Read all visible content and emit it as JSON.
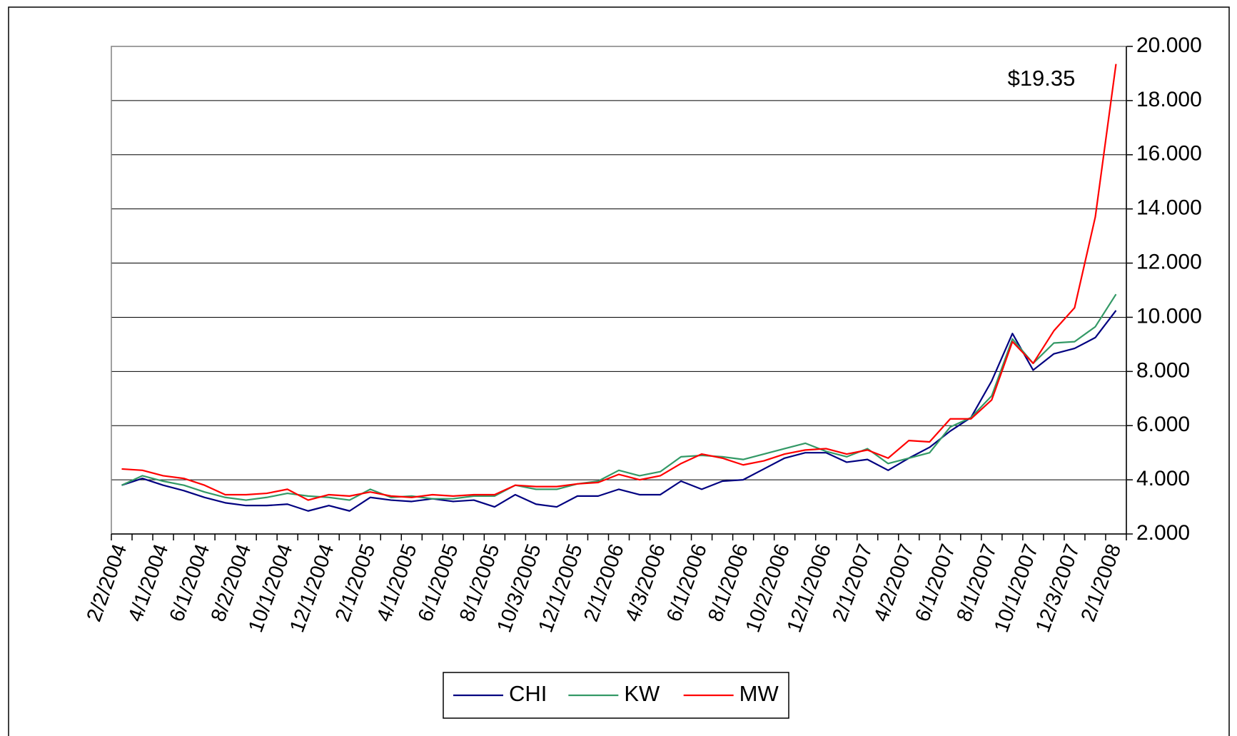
{
  "chart_data": {
    "type": "line",
    "categories": [
      "2/2/2004",
      null,
      "4/1/2004",
      null,
      "6/1/2004",
      null,
      "8/2/2004",
      null,
      "10/1/2004",
      null,
      "12/1/2004",
      null,
      "2/1/2005",
      null,
      "4/1/2005",
      null,
      "6/1/2005",
      null,
      "8/1/2005",
      null,
      "10/3/2005",
      null,
      "12/1/2005",
      null,
      "2/1/2006",
      null,
      "4/3/2006",
      null,
      "6/1/2006",
      null,
      "8/1/2006",
      null,
      "10/2/2006",
      null,
      "12/1/2006",
      null,
      "2/1/2007",
      null,
      "4/2/2007",
      null,
      "6/1/2007",
      null,
      "8/1/2007",
      null,
      "10/1/2007",
      null,
      "12/3/2007",
      null,
      "2/1/2008"
    ],
    "series": [
      {
        "name": "CHI",
        "color": "#000080",
        "values": [
          3.8,
          4.05,
          3.8,
          3.6,
          3.35,
          3.15,
          3.05,
          3.05,
          3.1,
          2.85,
          3.05,
          2.85,
          3.35,
          3.25,
          3.2,
          3.3,
          3.2,
          3.25,
          3.0,
          3.45,
          3.1,
          3.0,
          3.4,
          3.4,
          3.65,
          3.45,
          3.45,
          3.95,
          3.65,
          3.95,
          4.0,
          4.4,
          4.8,
          5.0,
          5.0,
          4.65,
          4.75,
          4.35,
          4.8,
          5.2,
          5.8,
          6.3,
          7.65,
          9.4,
          8.05,
          8.65,
          8.85,
          9.25,
          10.25
        ]
      },
      {
        "name": "KW",
        "color": "#339966",
        "values": [
          3.8,
          4.15,
          3.95,
          3.8,
          3.55,
          3.35,
          3.25,
          3.35,
          3.5,
          3.4,
          3.35,
          3.25,
          3.65,
          3.35,
          3.4,
          3.3,
          3.3,
          3.4,
          3.4,
          3.8,
          3.65,
          3.65,
          3.85,
          3.95,
          4.35,
          4.15,
          4.3,
          4.85,
          4.9,
          4.85,
          4.75,
          4.95,
          5.15,
          5.35,
          5.05,
          4.85,
          5.15,
          4.6,
          4.8,
          5.0,
          5.95,
          6.3,
          7.1,
          9.2,
          8.3,
          9.05,
          9.1,
          9.65,
          10.85
        ]
      },
      {
        "name": "MW",
        "color": "#ff0000",
        "values": [
          4.4,
          4.35,
          4.15,
          4.05,
          3.8,
          3.45,
          3.45,
          3.5,
          3.65,
          3.25,
          3.45,
          3.4,
          3.55,
          3.4,
          3.35,
          3.45,
          3.4,
          3.45,
          3.45,
          3.8,
          3.75,
          3.75,
          3.85,
          3.9,
          4.2,
          4.0,
          4.15,
          4.6,
          4.95,
          4.8,
          4.55,
          4.7,
          4.95,
          5.1,
          5.15,
          4.95,
          5.1,
          4.8,
          5.45,
          5.4,
          6.25,
          6.25,
          6.95,
          9.1,
          8.3,
          9.5,
          10.35,
          13.7,
          19.35
        ]
      }
    ],
    "annotation": "$19.35",
    "ylim": [
      2,
      20
    ],
    "yticks": [
      {
        "value": 2,
        "label": "2.000"
      },
      {
        "value": 4,
        "label": "4.000"
      },
      {
        "value": 6,
        "label": "6.000"
      },
      {
        "value": 8,
        "label": "8.000"
      },
      {
        "value": 10,
        "label": "10.000"
      },
      {
        "value": 12,
        "label": "12.000"
      },
      {
        "value": 14,
        "label": "14.000"
      },
      {
        "value": 16,
        "label": "16.000"
      },
      {
        "value": 18,
        "label": "18.000"
      },
      {
        "value": 20,
        "label": "20.000"
      }
    ],
    "y_axis_side": "right",
    "grid": true,
    "legend": "bottom"
  }
}
